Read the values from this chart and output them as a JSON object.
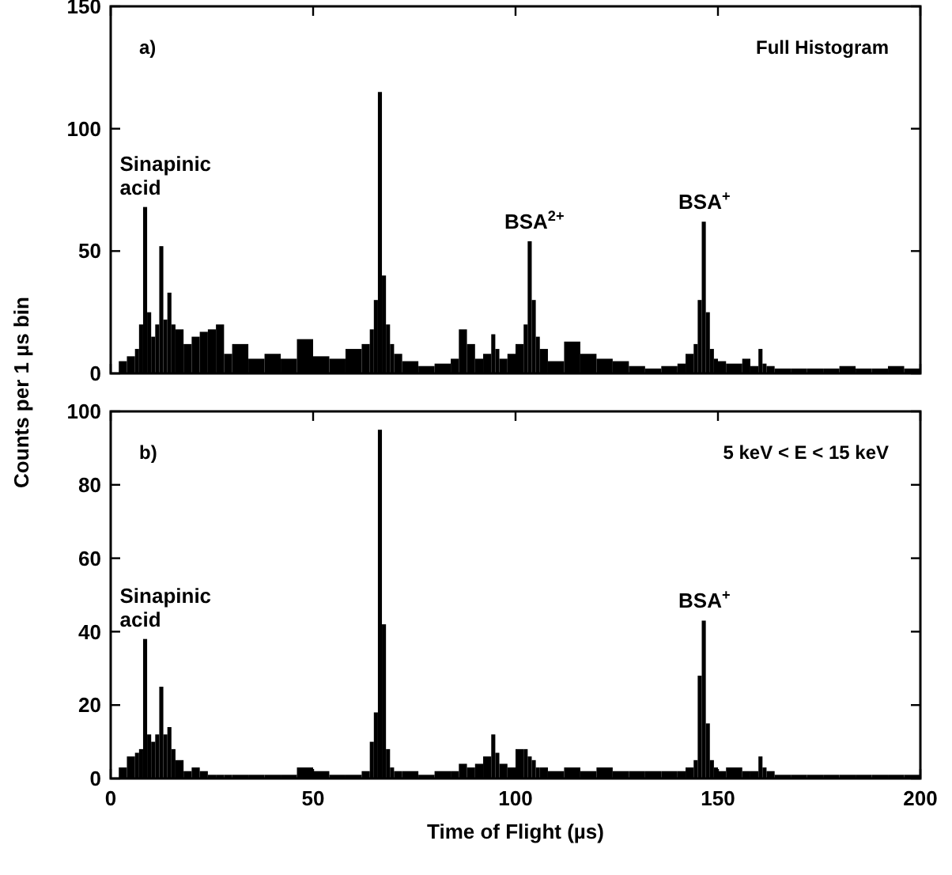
{
  "chart_data": [
    {
      "type": "histogram",
      "color": "#000000",
      "ylabel": "Counts per 1 µs bin",
      "bins": [
        2,
        4,
        6,
        7,
        8,
        9,
        10,
        11,
        12,
        13,
        14,
        15,
        16,
        18,
        20,
        22,
        24,
        26,
        28,
        30,
        34,
        38,
        42,
        46,
        50,
        54,
        58,
        62,
        64,
        65,
        66,
        67,
        68,
        69,
        70,
        72,
        76,
        80,
        84,
        86,
        88,
        90,
        92,
        94,
        95,
        96,
        98,
        100,
        102,
        103,
        104,
        105,
        106,
        108,
        112,
        116,
        120,
        124,
        128,
        132,
        136,
        140,
        142,
        144,
        145,
        146,
        147,
        148,
        149,
        150,
        152,
        156,
        158,
        160,
        161,
        162,
        164,
        168,
        172,
        176,
        180,
        184,
        188,
        192,
        196,
        200
      ],
      "values": [
        5,
        7,
        10,
        20,
        68,
        25,
        15,
        20,
        52,
        22,
        33,
        20,
        18,
        12,
        15,
        17,
        18,
        20,
        8,
        12,
        6,
        8,
        6,
        14,
        7,
        6,
        10,
        12,
        18,
        30,
        115,
        40,
        20,
        12,
        8,
        5,
        3,
        4,
        6,
        18,
        12,
        6,
        8,
        16,
        10,
        6,
        8,
        12,
        20,
        54,
        30,
        15,
        10,
        5,
        13,
        8,
        6,
        5,
        3,
        2,
        3,
        4,
        8,
        12,
        30,
        62,
        25,
        10,
        6,
        5,
        4,
        6,
        3,
        10,
        4,
        3,
        2,
        2,
        2,
        2,
        3,
        2,
        2,
        3,
        2
      ],
      "xlim": [
        0,
        200
      ],
      "xticks": [
        0,
        50,
        100,
        150,
        200
      ],
      "ylim": [
        0,
        150
      ],
      "yticks": [
        0,
        50,
        100,
        150
      ],
      "tick_labels": "y",
      "annotations": [
        "a)",
        "Full Histogram",
        {
          "text": "Sinapinic acid",
          "x": 8.5,
          "y": 68
        },
        {
          "text": "BSA$^{2+}$",
          "x": 103.5,
          "y": 54
        },
        {
          "text": "BSA$^{+}$",
          "x": 146.5,
          "y": 62
        }
      ]
    },
    {
      "type": "histogram",
      "color": "#000000",
      "xlabel": "Time of Flight (µs)",
      "bins": [
        2,
        4,
        6,
        7,
        8,
        9,
        10,
        11,
        12,
        13,
        14,
        15,
        16,
        18,
        20,
        22,
        24,
        26,
        28,
        30,
        34,
        38,
        42,
        46,
        50,
        54,
        58,
        62,
        64,
        65,
        66,
        67,
        68,
        69,
        70,
        72,
        76,
        80,
        84,
        86,
        88,
        90,
        92,
        94,
        95,
        96,
        98,
        100,
        102,
        103,
        104,
        105,
        106,
        108,
        112,
        116,
        120,
        124,
        128,
        132,
        136,
        140,
        142,
        144,
        145,
        146,
        147,
        148,
        149,
        150,
        152,
        156,
        158,
        160,
        161,
        162,
        164,
        168,
        172,
        176,
        180,
        184,
        188,
        192,
        196,
        200
      ],
      "values": [
        3,
        6,
        7,
        8,
        38,
        12,
        10,
        12,
        25,
        12,
        14,
        8,
        5,
        2,
        3,
        2,
        1,
        1,
        1,
        1,
        1,
        1,
        1,
        3,
        2,
        1,
        1,
        2,
        10,
        18,
        95,
        42,
        8,
        3,
        2,
        2,
        1,
        2,
        2,
        4,
        3,
        4,
        6,
        12,
        7,
        4,
        3,
        8,
        8,
        6,
        5,
        3,
        3,
        2,
        3,
        2,
        3,
        2,
        2,
        2,
        2,
        2,
        3,
        5,
        28,
        43,
        15,
        5,
        3,
        2,
        3,
        2,
        2,
        6,
        3,
        2,
        1,
        1,
        1,
        1,
        1,
        1,
        1,
        1,
        1
      ],
      "xlim": [
        0,
        200
      ],
      "xticks": [
        0,
        50,
        100,
        150,
        200
      ],
      "ylim": [
        0,
        100
      ],
      "yticks": [
        0,
        20,
        40,
        60,
        80,
        100
      ],
      "annotations": [
        "b)",
        "5 keV < E < 15 keV",
        {
          "text": "Sinapinic acid",
          "x": 8.5,
          "y": 38
        },
        {
          "text": "BSA$^{+}$",
          "x": 146.5,
          "y": 43
        }
      ]
    }
  ]
}
